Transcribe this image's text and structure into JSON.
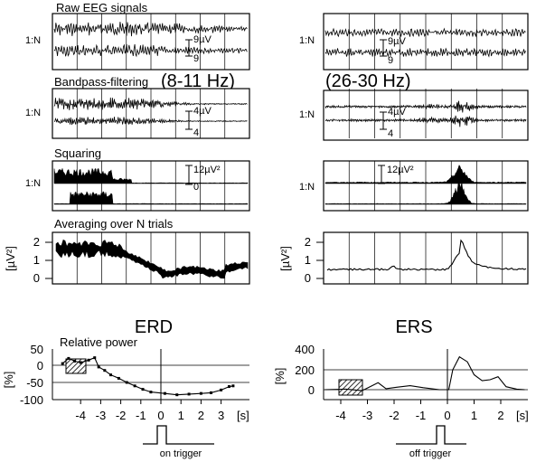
{
  "panels": {
    "raw_title": "Raw EEG signals",
    "bandpass_title": "Bandpass-filtering",
    "band_left": "(8-11 Hz)",
    "band_right": "(26-30 Hz)",
    "squaring_title": "Squaring",
    "averaging_title": "Averaging over N trials",
    "trial_label": "1:N"
  },
  "scales": {
    "raw_left_top": "9µV",
    "raw_left_bottom": "9",
    "raw_right_top": "9µV",
    "raw_right_bottom": "9",
    "bp_left_top": "4µV",
    "bp_left_bottom": "4",
    "bp_right_top": "4µV",
    "bp_right_bottom": "4",
    "sq_left_top": "12µV²",
    "sq_left_bottom": "0",
    "sq_right_top": "12µV²"
  },
  "avg_axis": {
    "ylabel": "[µV²]",
    "ticks": [
      "2",
      "1",
      "0"
    ]
  },
  "erd": {
    "title": "ERD",
    "subtitle": "Relative power",
    "ylabel": "[%]",
    "yticks": [
      "50",
      "0",
      "-50",
      "-100"
    ],
    "xticks": [
      "-4",
      "-3",
      "-2",
      "-1",
      "0",
      "1",
      "2",
      "3"
    ],
    "xunit": "[s]",
    "trigger": "on trigger"
  },
  "ers": {
    "title": "ERS",
    "ylabel": "[%]",
    "yticks": [
      "400",
      "200",
      "0"
    ],
    "xticks": [
      "-4",
      "-3",
      "-2",
      "-1",
      "0",
      "1",
      "2"
    ],
    "xunit": "[s]",
    "trigger": "off trigger"
  }
}
